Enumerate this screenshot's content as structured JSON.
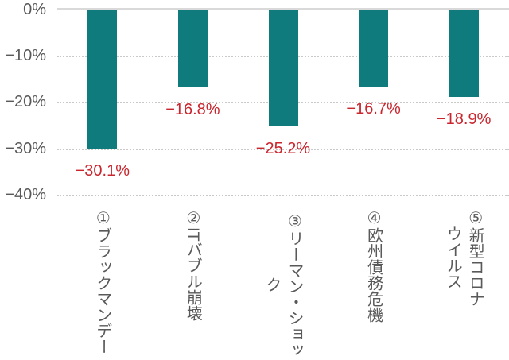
{
  "chart_data": {
    "type": "bar",
    "title": "",
    "xlabel": "",
    "ylabel": "",
    "categories": [
      "①ブラックマンデー",
      "②ITバブル崩壊",
      "③リーマン・ショック",
      "④欧州債務危機",
      "⑤新型コロナ\nウイルス"
    ],
    "values": [
      -30.1,
      -16.8,
      -25.2,
      -16.7,
      -18.9
    ],
    "data_labels": [
      "−30.1%",
      "−16.8%",
      "−25.2%",
      "−16.7%",
      "−18.9%"
    ],
    "y_tick_labels": [
      "0%",
      "−10%",
      "−20%",
      "−30%",
      "−40%"
    ],
    "y_tick_values": [
      0,
      -10,
      -20,
      -30,
      -40
    ],
    "ylim": [
      -40,
      0
    ],
    "grid": true,
    "legend_position": "none",
    "colors": {
      "bar": "#0f7b7d",
      "data_label": "#c9262e",
      "axis_text": "#595959",
      "category_text": "#595959",
      "gridline": "#c9c9c9",
      "zero_line": "#d9d9d9",
      "background": "#ffffff"
    }
  }
}
